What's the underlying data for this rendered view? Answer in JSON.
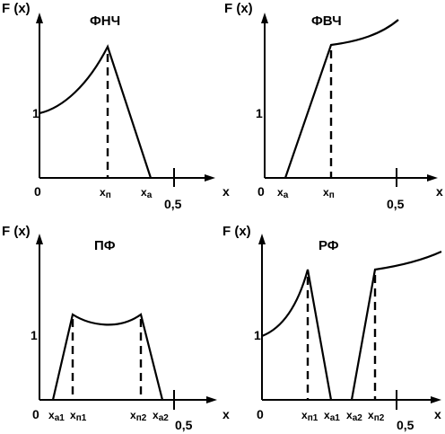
{
  "panels": [
    {
      "title": "ФНЧ",
      "y_axis_label": "F (x)",
      "x_axis_label": "x",
      "origin_label": "0",
      "one_label": "1",
      "half_label": "0,5",
      "x_labels": [
        {
          "main": "x",
          "sub": "п"
        },
        {
          "main": "x",
          "sub": "a"
        }
      ]
    },
    {
      "title": "ФВЧ",
      "y_axis_label": "F (x)",
      "x_axis_label": "x",
      "origin_label": "0",
      "one_label": "1",
      "half_label": "0,5",
      "x_labels": [
        {
          "main": "x",
          "sub": "a"
        },
        {
          "main": "x",
          "sub": "п"
        }
      ]
    },
    {
      "title": "ПФ",
      "y_axis_label": "F (x)",
      "x_axis_label": "x",
      "origin_label": "0",
      "one_label": "1",
      "half_label": "0,5",
      "x_labels": [
        {
          "main": "x",
          "sub": "a1"
        },
        {
          "main": "x",
          "sub": "п1"
        },
        {
          "main": "x",
          "sub": "п2"
        },
        {
          "main": "x",
          "sub": "a2"
        }
      ]
    },
    {
      "title": "РФ",
      "y_axis_label": "F (x)",
      "x_axis_label": "x",
      "origin_label": "0",
      "one_label": "1",
      "half_label": "0,5",
      "x_labels": [
        {
          "main": "x",
          "sub": "п1"
        },
        {
          "main": "x",
          "sub": "a1"
        },
        {
          "main": "x",
          "sub": "a2"
        },
        {
          "main": "x",
          "sub": "п2"
        }
      ]
    }
  ]
}
